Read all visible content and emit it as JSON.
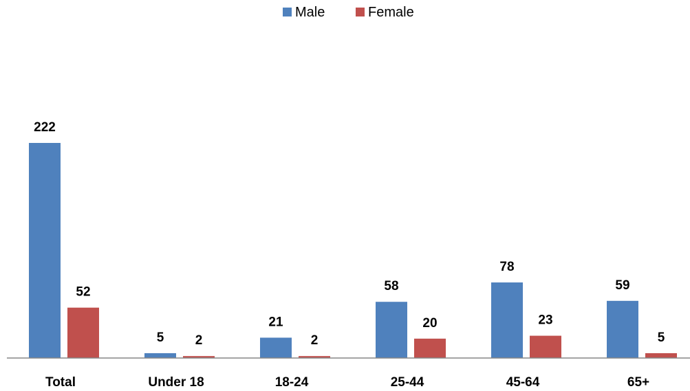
{
  "chart_data": {
    "type": "bar",
    "categories": [
      "Total",
      "Under 18",
      "18-24",
      "25-44",
      "45-64",
      "65+"
    ],
    "series": [
      {
        "name": "Male",
        "values": [
          222,
          5,
          21,
          58,
          78,
          59
        ],
        "color": "#4F81BD"
      },
      {
        "name": "Female",
        "values": [
          52,
          2,
          2,
          20,
          23,
          5
        ],
        "color": "#C0504D"
      }
    ],
    "title": "",
    "xlabel": "",
    "ylabel": "",
    "ylim": [
      0,
      222
    ],
    "grid": false,
    "legend": "top-center",
    "data_labels": true
  }
}
